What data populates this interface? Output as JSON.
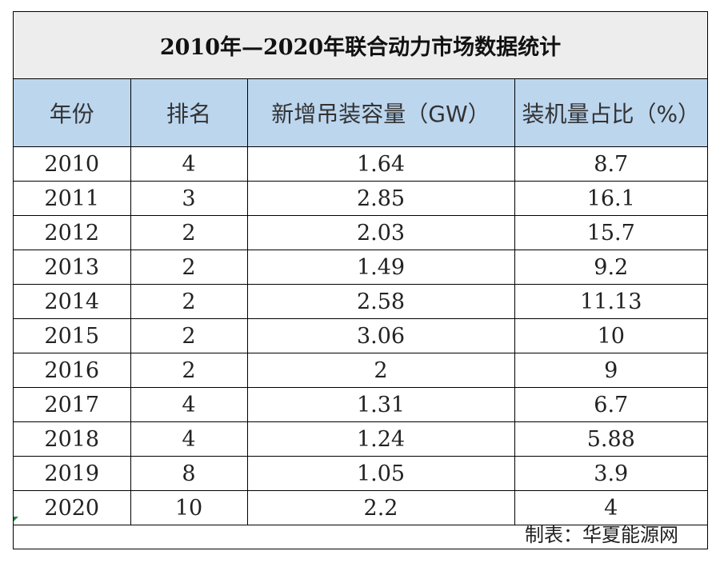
{
  "title": "2010年—2020年联合动力市场数据统计",
  "columns": [
    "年份",
    "排名",
    "新增吊装容量（GW）",
    "装机量占比（%）"
  ],
  "rows": [
    [
      "2010",
      "4",
      "1.64",
      "8.7"
    ],
    [
      "2011",
      "3",
      "2.85",
      "16.1"
    ],
    [
      "2012",
      "2",
      "2.03",
      "15.7"
    ],
    [
      "2013",
      "2",
      "1.49",
      "9.2"
    ],
    [
      "2014",
      "2",
      "2.58",
      "11.13"
    ],
    [
      "2015",
      "2",
      "3.06",
      "10"
    ],
    [
      "2016",
      "2",
      "2",
      "9"
    ],
    [
      "2017",
      "4",
      "1.31",
      "6.7"
    ],
    [
      "2018",
      "4",
      "1.24",
      "5.88"
    ],
    [
      "2019",
      "8",
      "1.05",
      "3.9"
    ],
    [
      "2020",
      "10",
      "2.2",
      "4"
    ]
  ],
  "footer": "制表：华夏能源网",
  "colors": {
    "title_bg": "#ededed",
    "header_bg": "#bcd6ee",
    "border": "#000000"
  }
}
